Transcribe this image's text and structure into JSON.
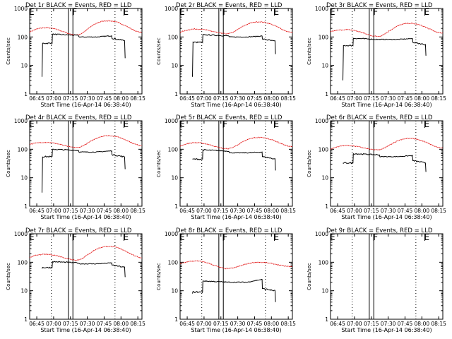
{
  "chart_data": {
    "type": "line",
    "ylabel": "Counts/sec",
    "xlabel": "Start Time (16-Apr-14 06:38:40)",
    "x_ticks": [
      "06:45",
      "07:00",
      "07:15",
      "07:30",
      "07:45",
      "08:00",
      "08:15"
    ],
    "x_range_minutes": [
      0,
      100
    ],
    "ylim": [
      1,
      1000
    ],
    "yscale": "log",
    "y_ticks": [
      "1",
      "10",
      "100",
      "1000"
    ],
    "markers": [
      {
        "label": "E",
        "minute": 0
      },
      {
        "label": "F",
        "minute": 38.5
      },
      {
        "label": "E",
        "minute": 84
      }
    ],
    "dotted_lines_minutes": [
      19.3,
      76
    ],
    "box_minutes": [
      34.5,
      38.5
    ],
    "series_colors": {
      "events": "#000000",
      "lld": "#e00000"
    },
    "panels": [
      {
        "title": "Det 1r BLACK = Events, RED = LLD",
        "lld": {
          "start": 150,
          "peak1_t": 14,
          "peak1": 210,
          "trough_t": 42,
          "trough": 118,
          "peak2_t": 69,
          "peak2": 370,
          "end": 145
        },
        "events": {
          "start_t": 11,
          "rise": 4,
          "seg1": 60,
          "step1_t": 20,
          "seg2": 125,
          "drop_t": 44,
          "low": 100,
          "bump": 110,
          "fall_t": 73,
          "seg3": 90,
          "end": 18
        }
      },
      {
        "title": "Det 2r BLACK = Events, RED = LLD",
        "lld": {
          "start": 145,
          "peak1_t": 14,
          "peak1": 190,
          "trough_t": 42,
          "trough": 130,
          "peak2_t": 70,
          "peak2": 340,
          "end": 145
        },
        "events": {
          "start_t": 11,
          "rise": 4,
          "seg1": 65,
          "step1_t": 20,
          "seg2": 120,
          "drop_t": 44,
          "low": 100,
          "bump": 108,
          "fall_t": 73,
          "seg3": 85,
          "end": 25
        }
      },
      {
        "title": "Det 3r BLACK = Events, RED = LLD",
        "lld": {
          "start": 155,
          "peak1_t": 14,
          "peak1": 180,
          "trough_t": 42,
          "trough": 105,
          "peak2_t": 70,
          "peak2": 300,
          "end": 135
        },
        "events": {
          "start_t": 11,
          "rise": 3,
          "seg1": 50,
          "step1_t": 20,
          "seg2": 90,
          "drop_t": 44,
          "low": 82,
          "bump": 88,
          "fall_t": 73,
          "seg3": 65,
          "end": 22
        }
      },
      {
        "title": "Det 4r BLACK = Events, RED = LLD",
        "lld": {
          "start": 150,
          "peak1_t": 14,
          "peak1": 175,
          "trough_t": 42,
          "trough": 115,
          "peak2_t": 70,
          "peak2": 300,
          "end": 135
        },
        "events": {
          "start_t": 11,
          "rise": 3,
          "seg1": 55,
          "step1_t": 20,
          "seg2": 100,
          "drop_t": 44,
          "low": 80,
          "bump": 88,
          "fall_t": 73,
          "seg3": 65,
          "end": 20
        }
      },
      {
        "title": "Det 5r BLACK = Events, RED = LLD",
        "lld": {
          "start": 130,
          "peak1_t": 14,
          "peak1": 170,
          "trough_t": 42,
          "trough": 105,
          "peak2_t": 70,
          "peak2": 260,
          "end": 125
        },
        "events": {
          "start_t": 11,
          "rise": 45,
          "seg1": 45,
          "step1_t": 20,
          "seg2": 95,
          "drop_t": 44,
          "low": 75,
          "bump": 80,
          "fall_t": 73,
          "seg3": 55,
          "end": 18
        }
      },
      {
        "title": "Det 6r BLACK = Events, RED = LLD",
        "lld": {
          "start": 100,
          "peak1_t": 14,
          "peak1": 135,
          "trough_t": 42,
          "trough": 95,
          "peak2_t": 70,
          "peak2": 240,
          "end": 110
        },
        "events": {
          "start_t": 11,
          "rise": 33,
          "seg1": 33,
          "step1_t": 20,
          "seg2": 70,
          "drop_t": 44,
          "low": 55,
          "bump": 60,
          "fall_t": 73,
          "seg3": 40,
          "end": 16
        }
      },
      {
        "title": "Det 7r BLACK = Events, RED = LLD",
        "lld": {
          "start": 150,
          "peak1_t": 14,
          "peak1": 190,
          "trough_t": 42,
          "trough": 120,
          "peak2_t": 70,
          "peak2": 360,
          "end": 145
        },
        "events": {
          "start_t": 11,
          "rise": 60,
          "seg1": 65,
          "step1_t": 20,
          "seg2": 105,
          "drop_t": 44,
          "low": 88,
          "bump": 95,
          "fall_t": 73,
          "seg3": 80,
          "end": 30
        }
      },
      {
        "title": "Det 8r BLACK = Events, RED = LLD",
        "lld": {
          "start": 90,
          "peak1_t": 14,
          "peak1": 110,
          "trough_t": 42,
          "trough": 60,
          "peak2_t": 70,
          "peak2": 100,
          "end": 70
        },
        "events": {
          "start_t": 11,
          "rise": 8,
          "seg1": 9,
          "step1_t": 20,
          "seg2": 22,
          "drop_t": 44,
          "low": 20,
          "bump": 25,
          "fall_t": 73,
          "seg3": 12,
          "end": 4
        }
      },
      {
        "title": "Det 9r BLACK = Events, RED = LLD",
        "lld": null,
        "events": null
      }
    ]
  }
}
